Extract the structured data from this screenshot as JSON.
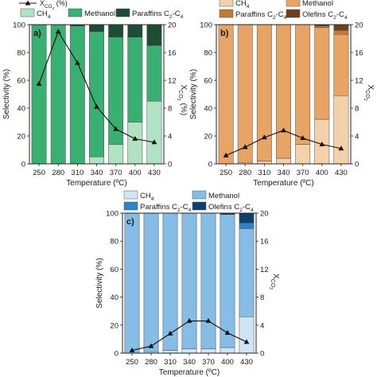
{
  "chart_data": [
    {
      "type": "bar",
      "panel_label": "a)",
      "categories": [
        "250",
        "280",
        "310",
        "340",
        "370",
        "400",
        "430"
      ],
      "xlabel": "Temperature (ºC)",
      "ylabel": "Selectivity (%)",
      "y2label": "X",
      "y2label_sub": "CO",
      "y2label_subsub": "2",
      "y2label_suffix": " (%)",
      "ylim": [
        0,
        100
      ],
      "y2lim": [
        0,
        20
      ],
      "yticks": [
        "0",
        "20",
        "40",
        "60",
        "80",
        "100"
      ],
      "y2ticks": [
        "0",
        "4",
        "8",
        "12",
        "16",
        "20"
      ],
      "stack_series": [
        {
          "name": "CH4",
          "color": "#b2e2c4",
          "values": [
            0,
            0,
            0,
            5,
            14,
            30,
            45
          ]
        },
        {
          "name": "Methanol",
          "color": "#3aaf72",
          "values": [
            100,
            100,
            99,
            90,
            77,
            61,
            40
          ]
        },
        {
          "name": "Paraffins C2-C4",
          "color": "#1d4d35",
          "values": [
            0,
            0,
            1,
            5,
            9,
            9,
            15
          ]
        }
      ],
      "conversion": {
        "name": "XCO2 (%)",
        "values": [
          11.5,
          19.0,
          14.5,
          8.2,
          5.0,
          3.6,
          3.1
        ]
      },
      "legend": {
        "conversion_label": "X",
        "conversion_sub": "CO",
        "conversion_subsub": "2",
        "conversion_suffix": " (%)",
        "items": [
          {
            "label": "CH",
            "sub": "4",
            "tail": ""
          },
          {
            "label": "Methanol",
            "sub": "",
            "tail": ""
          },
          {
            "label": "Paraffins C",
            "sub": "2",
            "tail": "-C",
            "sub2": "4"
          }
        ]
      }
    },
    {
      "type": "bar",
      "panel_label": "b)",
      "categories": [
        "250",
        "280",
        "310",
        "340",
        "370",
        "400",
        "430"
      ],
      "xlabel": "Temperature (ºC)",
      "ylabel": "Selectivity (%)",
      "y2label": "X",
      "y2label_sub": "CO",
      "y2label_subsub": "2",
      "y2label_suffix": "",
      "ylim": [
        0,
        100
      ],
      "y2lim": [
        0,
        20
      ],
      "yticks": [
        "0",
        "20",
        "40",
        "60",
        "80",
        "100"
      ],
      "y2ticks": [
        "0",
        "4",
        "8",
        "12",
        "16",
        "20"
      ],
      "stack_series": [
        {
          "name": "CH4",
          "color": "#f3d2aa",
          "values": [
            0,
            1,
            2,
            4,
            14,
            32,
            49
          ]
        },
        {
          "name": "Methanol",
          "color": "#e8a465",
          "values": [
            100,
            99,
            98,
            96,
            86,
            66,
            44
          ]
        },
        {
          "name": "Paraffins C2-C4",
          "color": "#c07a34",
          "values": [
            0,
            0,
            0,
            0,
            0,
            1,
            3
          ]
        },
        {
          "name": "Olefins C2-C4",
          "color": "#6e3f1b",
          "values": [
            0,
            0,
            0,
            0,
            0,
            1,
            4
          ]
        }
      ],
      "conversion": {
        "name": "XCO2",
        "values": [
          1.2,
          2.4,
          3.8,
          4.8,
          3.7,
          2.8,
          2.2
        ]
      },
      "legend": {
        "items": [
          {
            "label": "CH",
            "sub": "4",
            "tail": ""
          },
          {
            "label": "Methanol",
            "sub": "",
            "tail": ""
          },
          {
            "label": "Paraffins C",
            "sub": "2",
            "tail": "-C",
            "sub2": "4"
          },
          {
            "label": "Olefins C",
            "sub": "2",
            "tail": "-C",
            "sub2": "4"
          }
        ]
      }
    },
    {
      "type": "bar",
      "panel_label": "c)",
      "categories": [
        "250",
        "280",
        "310",
        "340",
        "370",
        "400",
        "430"
      ],
      "xlabel": "Temperature (ºC)",
      "ylabel": "Selectivity (%)",
      "y2label": "X",
      "y2label_sub": "CO",
      "y2label_subsub": "2",
      "y2label_suffix": "",
      "ylim": [
        0,
        100
      ],
      "y2lim": [
        0,
        20
      ],
      "yticks": [
        "0",
        "20",
        "40",
        "60",
        "80",
        "100"
      ],
      "y2ticks": [
        "0",
        "4",
        "8",
        "12",
        "16",
        "20"
      ],
      "stack_series": [
        {
          "name": "CH4",
          "color": "#cfe4f5",
          "values": [
            0,
            1,
            2,
            3,
            3,
            4,
            26
          ]
        },
        {
          "name": "Methanol",
          "color": "#86bde6",
          "values": [
            100,
            99,
            98,
            97,
            97,
            95,
            63
          ]
        },
        {
          "name": "Paraffins C2-C4",
          "color": "#2a86c8",
          "values": [
            0,
            0,
            0,
            0,
            0,
            0,
            4
          ]
        },
        {
          "name": "Olefins C2-C4",
          "color": "#0e3f6e",
          "values": [
            0,
            0,
            0,
            0,
            0,
            1,
            7
          ]
        }
      ],
      "conversion": {
        "name": "XCO2",
        "values": [
          0.4,
          1.0,
          2.8,
          4.6,
          4.6,
          2.9,
          1.6
        ]
      },
      "legend": {
        "items": [
          {
            "label": "CH",
            "sub": "4",
            "tail": ""
          },
          {
            "label": "Methanol",
            "sub": "",
            "tail": ""
          },
          {
            "label": "Paraffins C",
            "sub": "2",
            "tail": "-C",
            "sub2": "4"
          },
          {
            "label": "Olefins C",
            "sub": "2",
            "tail": "-C",
            "sub2": "4"
          }
        ]
      }
    }
  ]
}
